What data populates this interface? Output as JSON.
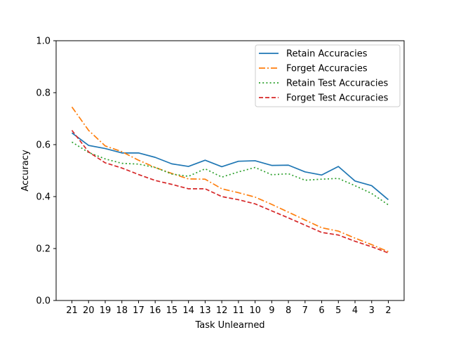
{
  "chart_data": {
    "type": "line",
    "xlabel": "Task Unlearned",
    "ylabel": "Accuracy",
    "categories": [
      "21",
      "20",
      "19",
      "18",
      "17",
      "16",
      "15",
      "14",
      "13",
      "12",
      "11",
      "10",
      "9",
      "8",
      "7",
      "6",
      "5",
      "4",
      "3",
      "2"
    ],
    "ylim": [
      0.0,
      1.0
    ],
    "yticks": [
      "0.0",
      "0.2",
      "0.4",
      "0.6",
      "0.8",
      "1.0"
    ],
    "grid": false,
    "legend_position": "top-right",
    "series": [
      {
        "name": "Retain Accuracies",
        "color": "#1f77b4",
        "style": "solid",
        "values": [
          0.645,
          0.597,
          0.585,
          0.568,
          0.568,
          0.551,
          0.526,
          0.516,
          0.54,
          0.515,
          0.536,
          0.538,
          0.52,
          0.521,
          0.495,
          0.483,
          0.516,
          0.46,
          0.442,
          0.388
        ]
      },
      {
        "name": "Forget Accuracies",
        "color": "#ff7f0e",
        "style": "dashdot",
        "values": [
          0.745,
          0.655,
          0.595,
          0.573,
          0.54,
          0.512,
          0.489,
          0.468,
          0.467,
          0.43,
          0.415,
          0.398,
          0.37,
          0.34,
          0.31,
          0.28,
          0.267,
          0.24,
          0.215,
          0.188
        ]
      },
      {
        "name": "Retain Test Accuracies",
        "color": "#2ca02c",
        "style": "dotted",
        "values": [
          0.61,
          0.57,
          0.545,
          0.528,
          0.525,
          0.512,
          0.487,
          0.478,
          0.507,
          0.475,
          0.495,
          0.512,
          0.484,
          0.488,
          0.463,
          0.467,
          0.47,
          0.442,
          0.412,
          0.368
        ]
      },
      {
        "name": "Forget Test Accuracies",
        "color": "#d62728",
        "style": "dashed",
        "values": [
          0.655,
          0.572,
          0.53,
          0.51,
          0.485,
          0.462,
          0.447,
          0.43,
          0.43,
          0.4,
          0.388,
          0.372,
          0.345,
          0.318,
          0.29,
          0.262,
          0.252,
          0.228,
          0.207,
          0.183
        ]
      }
    ]
  }
}
